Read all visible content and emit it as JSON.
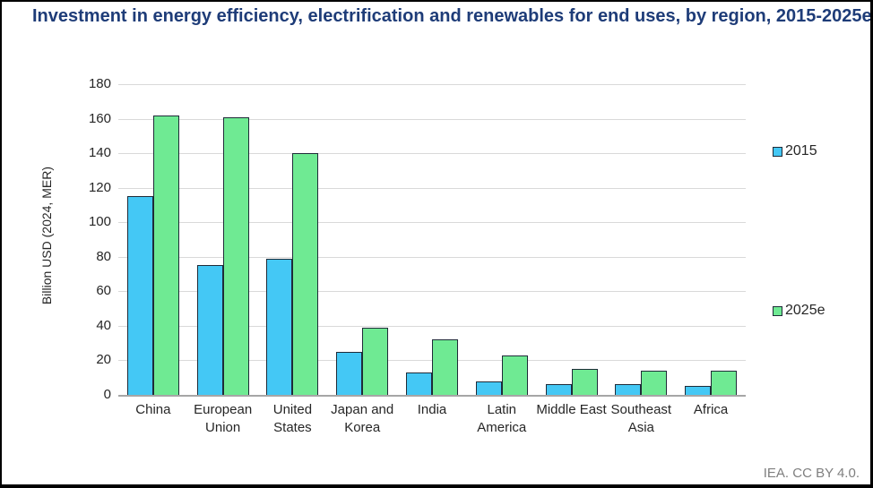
{
  "page": {
    "credit": "IEA. CC BY 4.0."
  },
  "chart_data": {
    "type": "bar",
    "title": "Investment in energy efficiency, electrification and renewables for end uses, by region, 2015-2025e",
    "xlabel": "",
    "ylabel": "Billion USD (2024, MER)",
    "ylim": [
      0,
      180
    ],
    "ytick_step": 20,
    "grid": "horizontal",
    "legend_position": "right",
    "categories": [
      "China",
      "European Union",
      "United States",
      "Japan and Korea",
      "India",
      "Latin America",
      "Middle East",
      "Southeast Asia",
      "Africa"
    ],
    "series": [
      {
        "name": "2015",
        "color": "#44C8F5",
        "values": [
          115,
          75,
          79,
          25,
          13,
          8,
          6,
          6,
          5
        ]
      },
      {
        "name": "2025e",
        "color": "#6FEA93",
        "values": [
          162,
          161,
          140,
          39,
          32,
          23,
          15,
          14,
          14
        ]
      }
    ]
  }
}
